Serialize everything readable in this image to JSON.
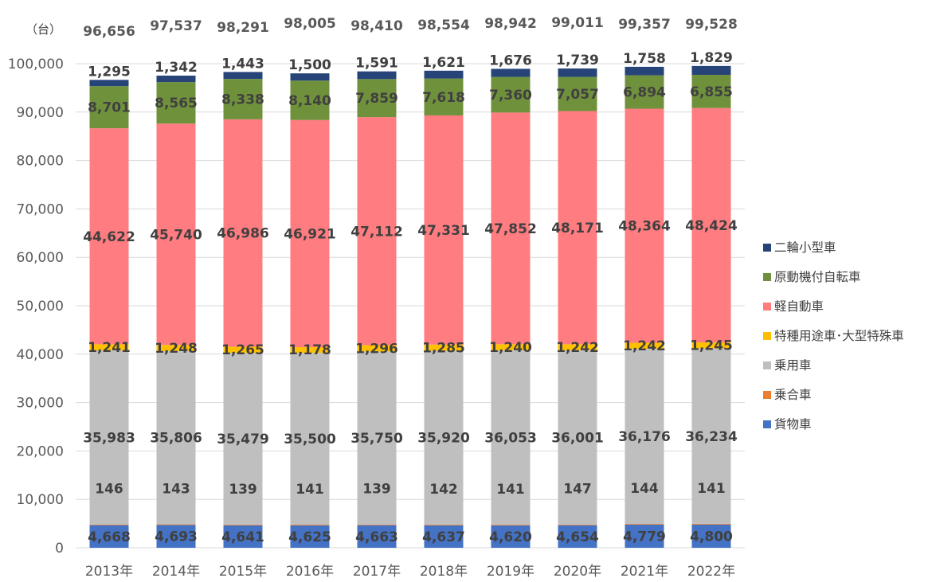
{
  "chart_data": {
    "type": "bar",
    "stacked": true,
    "unit_label": "（台）",
    "categories": [
      "2013年",
      "2014年",
      "2015年",
      "2016年",
      "2017年",
      "2018年",
      "2019年",
      "2020年",
      "2021年",
      "2022年"
    ],
    "ylim": [
      0,
      100000
    ],
    "yticks": [
      "0",
      "10,000",
      "20,000",
      "30,000",
      "40,000",
      "50,000",
      "60,000",
      "70,000",
      "80,000",
      "90,000",
      "100,000"
    ],
    "grid": true,
    "legend_position": "right",
    "series": [
      {
        "name": "貨物車",
        "color": "#4472C4",
        "values": [
          4668,
          4693,
          4641,
          4625,
          4663,
          4637,
          4620,
          4654,
          4779,
          4800
        ],
        "labels": [
          "4,668",
          "4,693",
          "4,641",
          "4,625",
          "4,663",
          "4,637",
          "4,620",
          "4,654",
          "4,779",
          "4,800"
        ]
      },
      {
        "name": "乗合車",
        "color": "#ED7D31",
        "values": [
          146,
          143,
          139,
          141,
          139,
          142,
          141,
          147,
          144,
          141
        ],
        "labels": [
          "146",
          "143",
          "139",
          "141",
          "139",
          "142",
          "141",
          "147",
          "144",
          "141"
        ]
      },
      {
        "name": "乗用車",
        "color": "#BFBFBF",
        "values": [
          35983,
          35806,
          35479,
          35500,
          35750,
          35920,
          36053,
          36001,
          36176,
          36234
        ],
        "labels": [
          "35,983",
          "35,806",
          "35,479",
          "35,500",
          "35,750",
          "35,920",
          "36,053",
          "36,001",
          "36,176",
          "36,234"
        ]
      },
      {
        "name": "特種用途車･大型特殊車",
        "color": "#FFC000",
        "values": [
          1241,
          1248,
          1265,
          1178,
          1296,
          1285,
          1240,
          1242,
          1242,
          1245
        ],
        "labels": [
          "1,241",
          "1,248",
          "1,265",
          "1,178",
          "1,296",
          "1,285",
          "1,240",
          "1,242",
          "1,242",
          "1,245"
        ]
      },
      {
        "name": "軽自動車",
        "color": "#FF7C80",
        "values": [
          44622,
          45740,
          46986,
          46921,
          47112,
          47331,
          47852,
          48171,
          48364,
          48424
        ],
        "labels": [
          "44,622",
          "45,740",
          "46,986",
          "46,921",
          "47,112",
          "47,331",
          "47,852",
          "48,171",
          "48,364",
          "48,424"
        ]
      },
      {
        "name": "原動機付自転車",
        "color": "#70913C",
        "values": [
          8701,
          8565,
          8338,
          8140,
          7859,
          7618,
          7360,
          7057,
          6894,
          6855
        ],
        "labels": [
          "8,701",
          "8,565",
          "8,338",
          "8,140",
          "7,859",
          "7,618",
          "7,360",
          "7,057",
          "6,894",
          "6,855"
        ]
      },
      {
        "name": "二輪小型車",
        "color": "#264478",
        "values": [
          1295,
          1342,
          1443,
          1500,
          1591,
          1621,
          1676,
          1739,
          1758,
          1829
        ],
        "labels": [
          "1,295",
          "1,342",
          "1,443",
          "1,500",
          "1,591",
          "1,621",
          "1,676",
          "1,739",
          "1,758",
          "1,829"
        ]
      }
    ],
    "totals": [
      "96,656",
      "97,537",
      "98,291",
      "98,005",
      "98,410",
      "98,554",
      "98,942",
      "99,011",
      "99,357",
      "99,528"
    ],
    "legend_order": [
      "二輪小型車",
      "原動機付自転車",
      "軽自動車",
      "特種用途車･大型特殊車",
      "乗用車",
      "乗合車",
      "貨物車"
    ]
  }
}
